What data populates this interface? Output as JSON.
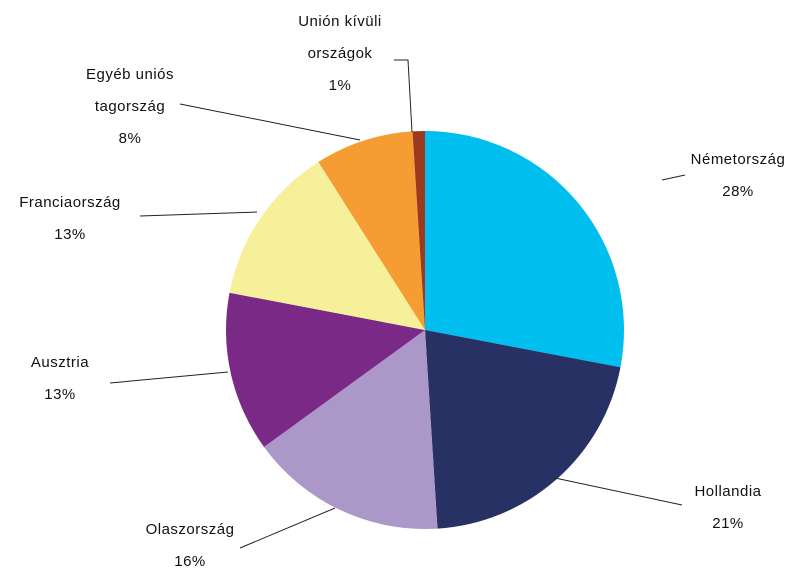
{
  "chart_data": {
    "type": "pie",
    "categories": [
      "Németország",
      "Hollandia",
      "Olaszország",
      "Ausztria",
      "Franciaország",
      "Egyéb uniós tagország",
      "Unión kívüli országok"
    ],
    "values": [
      28,
      21,
      16,
      13,
      13,
      8,
      1
    ],
    "value_labels": [
      "28%",
      "21%",
      "16%",
      "13%",
      "13%",
      "8%",
      "1%"
    ],
    "colors": [
      "#00bfef",
      "#283164",
      "#ab98c8",
      "#7a2a86",
      "#f6f09a",
      "#f59c33",
      "#9b3a1e"
    ]
  }
}
